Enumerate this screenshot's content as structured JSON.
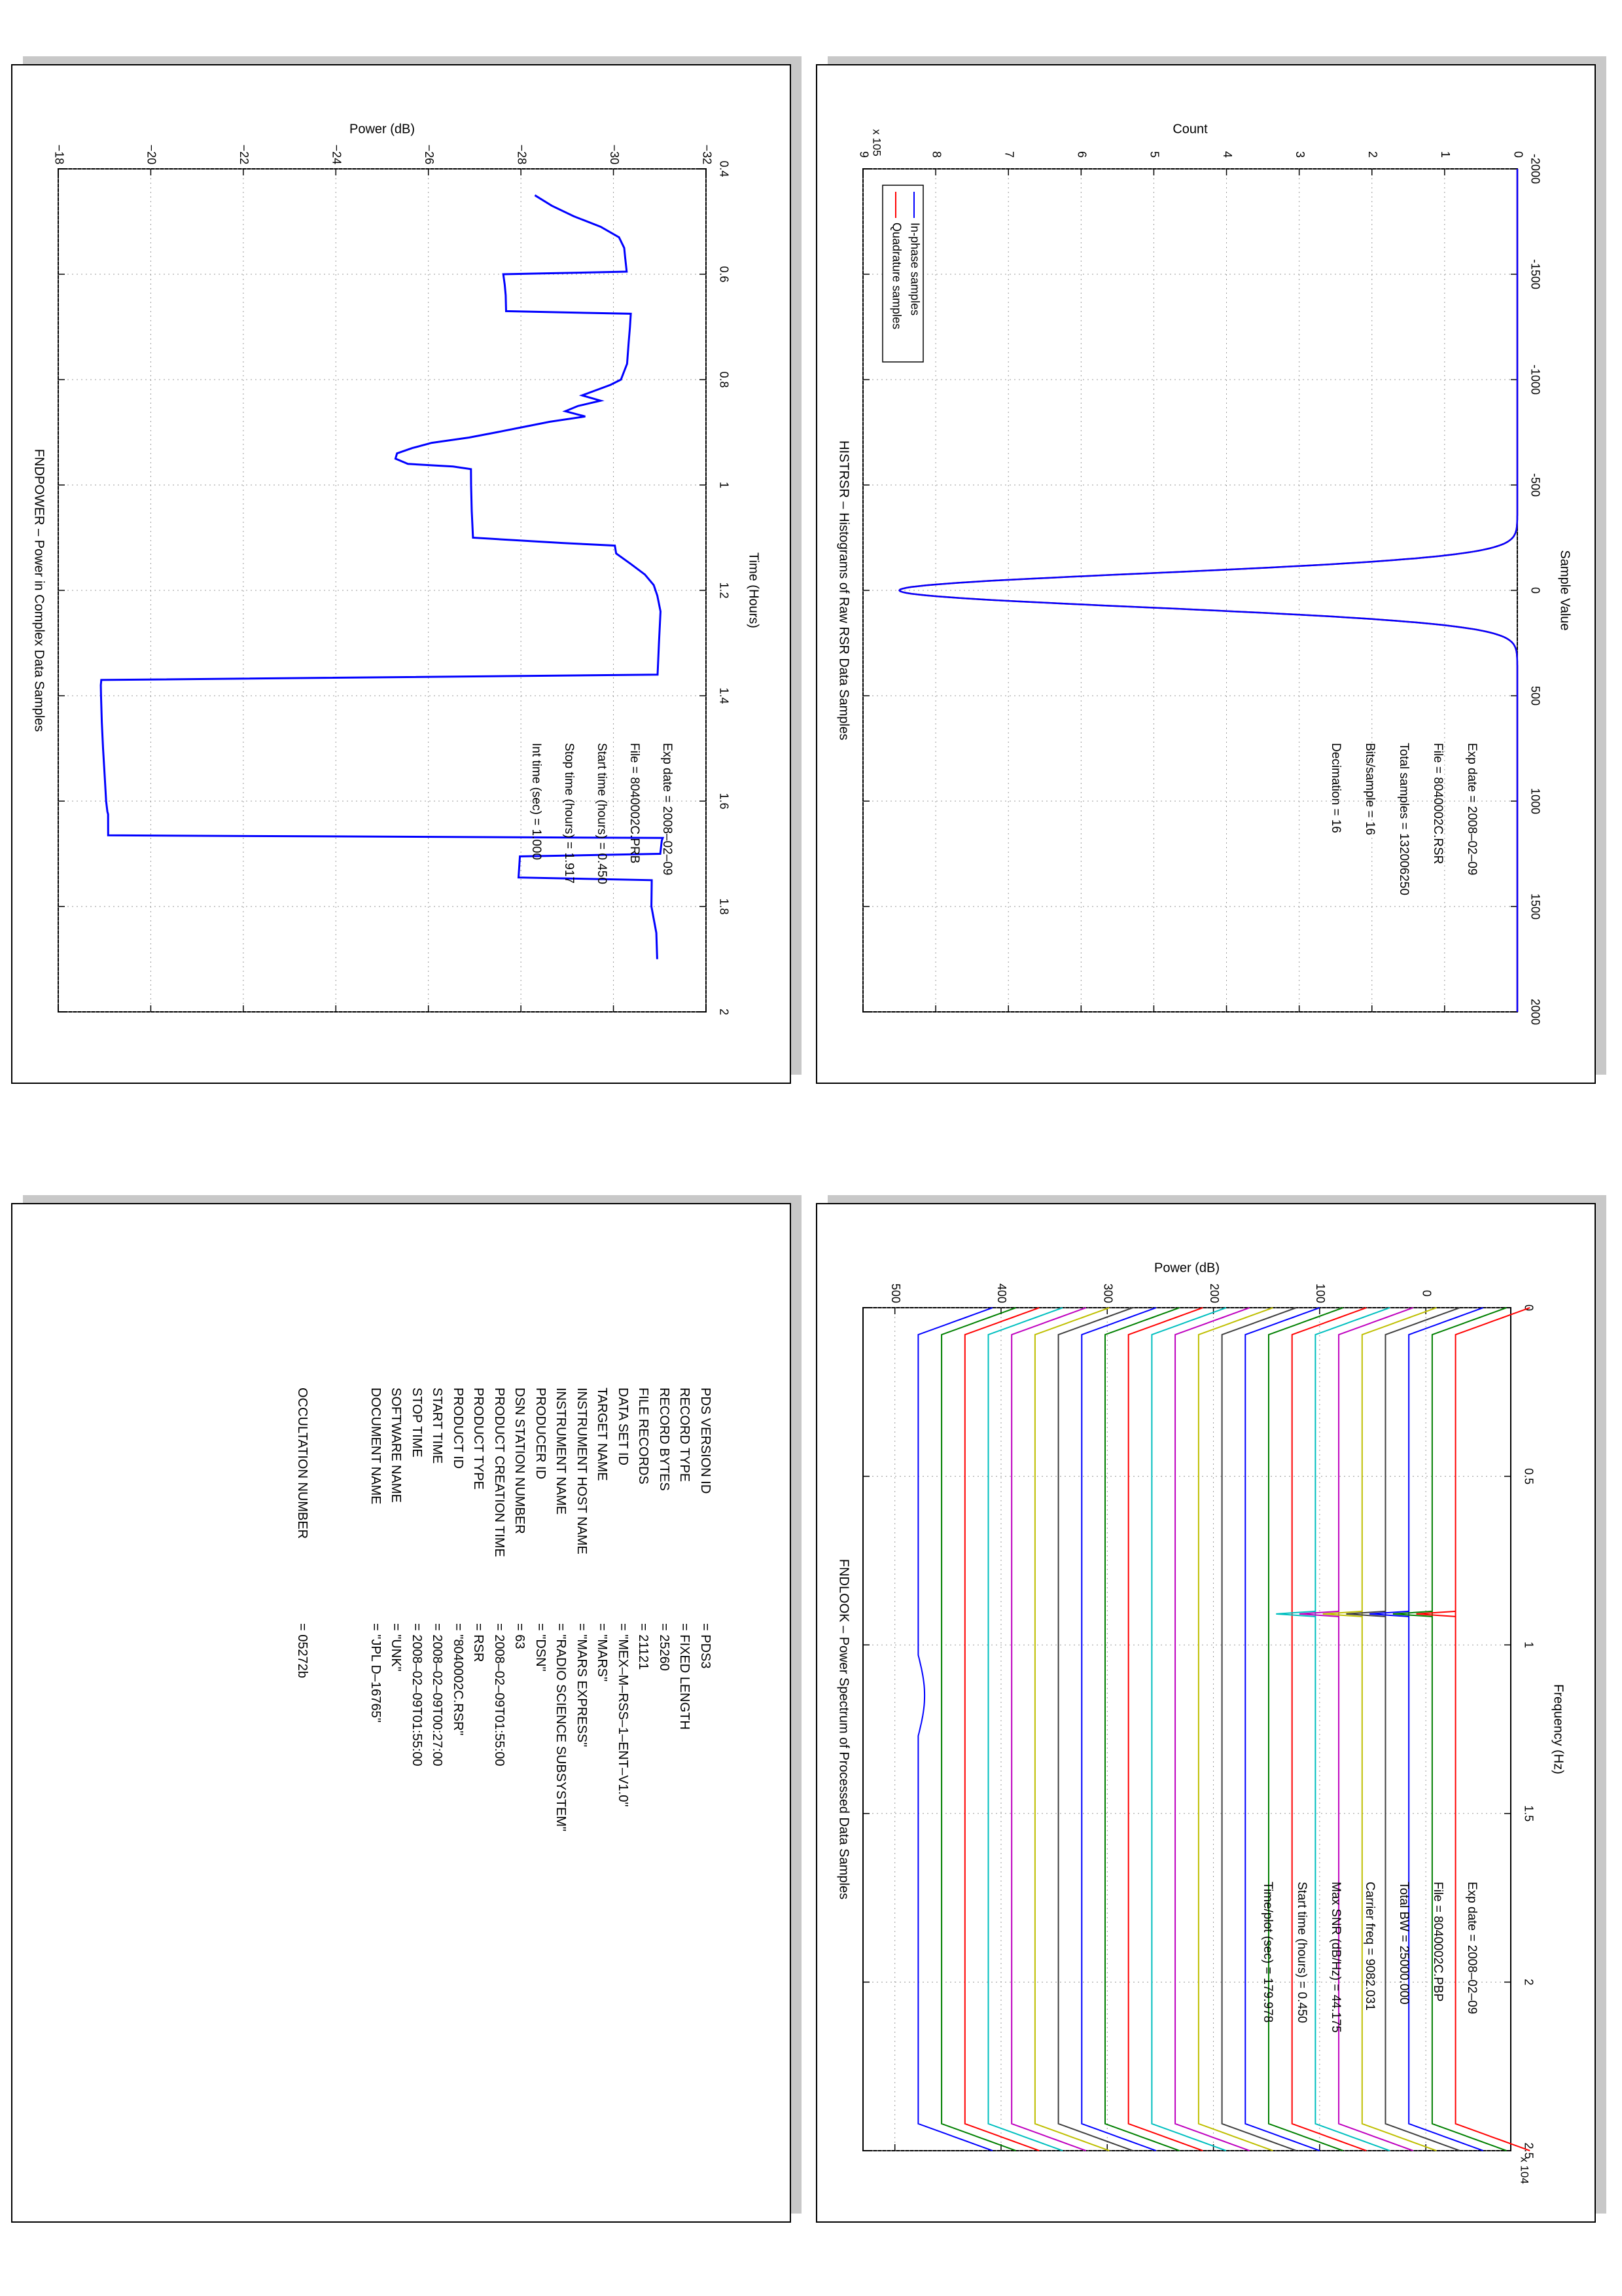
{
  "chart_data": [
    {
      "id": "histrsr",
      "type": "line",
      "title": "HISTRSR – Histograms of Raw RSR Data Samples",
      "xlabel": "Sample Value",
      "ylabel": "Count",
      "y_multiplier": "x 10^5",
      "xlim": [
        -2000,
        2000
      ],
      "ylim": [
        0,
        900000
      ],
      "xticks": [
        -2000,
        -1500,
        -1000,
        -500,
        0,
        500,
        1000,
        1500,
        2000
      ],
      "yticks": [
        0,
        100000,
        200000,
        300000,
        400000,
        500000,
        600000,
        700000,
        800000,
        900000
      ],
      "ytick_labels": [
        "0",
        "1",
        "2",
        "3",
        "4",
        "5",
        "6",
        "7",
        "8",
        "9"
      ],
      "grid": true,
      "legend": "top-right",
      "series": [
        {
          "name": "In-phase samples",
          "color": "#0000ff",
          "shape": "gaussian",
          "peak": 850000,
          "center": 0,
          "sigma": 80
        },
        {
          "name": "Quadrature samples",
          "color": "#ff0000",
          "shape": "gaussian",
          "peak": 850000,
          "center": 0,
          "sigma": 80
        }
      ],
      "annotations": [
        "Exp date = 2008–02–09",
        "File = 8040002C.RSR",
        "Total samples =  132006250",
        "Bits/sample   =        16",
        "Decimation    =        16"
      ]
    },
    {
      "id": "fndpower",
      "type": "line",
      "title": "FNDPOWER – Power in Complex Data Samples",
      "xlabel": "Time (Hours)",
      "ylabel": "Power (dB)",
      "xlim": [
        0.4,
        2.0
      ],
      "ylim": [
        -32,
        -18
      ],
      "xticks": [
        0.4,
        0.6,
        0.8,
        1.0,
        1.2,
        1.4,
        1.6,
        1.8,
        2.0
      ],
      "xtick_labels": [
        "0.4",
        "0.6",
        "0.8",
        "1",
        "1.2",
        "1.4",
        "1.6",
        "1.8",
        "2"
      ],
      "yticks": [
        -32,
        -30,
        -28,
        -26,
        -24,
        -22,
        -20,
        -18
      ],
      "ytick_labels": [
        "−32",
        "−30",
        "−28",
        "−26",
        "−24",
        "−22",
        "−20",
        "−18"
      ],
      "grid": true,
      "color": "#0000ff",
      "x": [
        0.45,
        0.47,
        0.49,
        0.51,
        0.53,
        0.55,
        0.57,
        0.595,
        0.6,
        0.62,
        0.64,
        0.67,
        0.675,
        0.7,
        0.73,
        0.77,
        0.8,
        0.81,
        0.83,
        0.84,
        0.85,
        0.86,
        0.87,
        0.88,
        0.89,
        0.9,
        0.91,
        0.92,
        0.93,
        0.94,
        0.95,
        0.96,
        0.965,
        0.97,
        1.0,
        1.05,
        1.1,
        1.11,
        1.115,
        1.13,
        1.15,
        1.17,
        1.19,
        1.21,
        1.24,
        1.3,
        1.36,
        1.37,
        1.38,
        1.4,
        1.45,
        1.5,
        1.55,
        1.6,
        1.62,
        1.625,
        1.665,
        1.67,
        1.675,
        1.7,
        1.705,
        1.745,
        1.75,
        1.8,
        1.85,
        1.9
      ],
      "y": [
        -28.3,
        -28.7,
        -29.2,
        -29.8,
        -30.2,
        -30.3,
        -30.3,
        -30.3,
        -27.6,
        -27.6,
        -27.6,
        -27.6,
        -30.3,
        -30.3,
        -30.3,
        -30.3,
        -30.2,
        -30.0,
        -29.4,
        -29.8,
        -29.3,
        -29.0,
        -29.4,
        -28.6,
        -28.0,
        -27.4,
        -26.8,
        -26.0,
        -25.6,
        -25.3,
        -25.3,
        -25.6,
        -26.6,
        -27.0,
        -27.0,
        -27.0,
        -27.0,
        -28.9,
        -30.0,
        -30.0,
        -30.3,
        -30.6,
        -30.8,
        -30.9,
        -31.0,
        -31.0,
        -31.0,
        -19.0,
        -19.0,
        -19.0,
        -19.0,
        -19.0,
        -19.0,
        -19.0,
        -19.0,
        -19.0,
        -19.0,
        -31.0,
        -31.0,
        -31.0,
        -28.0,
        -28.0,
        -30.9,
        -30.9,
        -31.0,
        -31.0
      ],
      "annotations": [
        "Exp date = 2008–02–09",
        "File = 8040002C.PRB",
        "Start time (hours) =  0.450",
        "Stop time (hours) =  1.917",
        "Int time (sec) =      1.000"
      ]
    },
    {
      "id": "fndlook",
      "type": "line",
      "title": "FNDLOOK – Power Spectrum of Processed Data Samples",
      "xlabel": "Frequency (Hz)",
      "ylabel": "Power (dB)",
      "x_multiplier": "x 10^4",
      "xlim": [
        0,
        25000
      ],
      "ylim": [
        -80,
        530
      ],
      "xticks": [
        0,
        5000,
        10000,
        15000,
        20000,
        25000
      ],
      "xtick_labels": [
        "0",
        "0.5",
        "1",
        "1.5",
        "2",
        "2.5"
      ],
      "yticks": [
        0,
        100,
        200,
        300,
        400,
        500
      ],
      "grid": true,
      "tone_frequency": 9082,
      "series_count": 24,
      "top_offset": 478,
      "offset_step": 22,
      "colors": [
        "#0000ff",
        "#008000",
        "#ff0000",
        "#00bfbf",
        "#bf00bf",
        "#bfbf00",
        "#3f3f3f"
      ],
      "annotations": [
        "Exp date = 2008–02–09",
        "File = 8040002C.PBP",
        "Total BW =      25000.000",
        "Carrier freq =   9082.031",
        "Max SNR (dB/Hz) =    44.175",
        "Start time (hours) =    0.450",
        "Time/plot (sec) =    179.978"
      ]
    }
  ],
  "label_table": {
    "rows": [
      {
        "key": "PDS VERSION ID",
        "value": "=  PDS3"
      },
      {
        "key": "RECORD TYPE",
        "value": "=  FIXED LENGTH"
      },
      {
        "key": "RECORD BYTES",
        "value": "=  25260"
      },
      {
        "key": "FILE RECORDS",
        "value": "=  21121"
      },
      {
        "key": "DATA SET ID",
        "value": "=  \"MEX–M–RSS–1–ENT–V1.0\""
      },
      {
        "key": "TARGET NAME",
        "value": "=  \"MARS\""
      },
      {
        "key": "INSTRUMENT HOST NAME",
        "value": "=  \"MARS EXPRESS\""
      },
      {
        "key": "INSTRUMENT NAME",
        "value": "=  \"RADIO SCIENCE SUBSYSTEM\""
      },
      {
        "key": "PRODUCER ID",
        "value": "=  \"DSN\""
      },
      {
        "key": "DSN STATION NUMBER",
        "value": "=  63"
      },
      {
        "key": "PRODUCT CREATION TIME",
        "value": "=  2008–02–09T01:55:00"
      },
      {
        "key": "PRODUCT TYPE",
        "value": "=  RSR"
      },
      {
        "key": "PRODUCT ID",
        "value": "=  \"8040002C.RSR\""
      },
      {
        "key": "START TIME",
        "value": "=  2008–02–09T00:27:00"
      },
      {
        "key": "STOP TIME",
        "value": "=  2008–02–09T01:55:00"
      },
      {
        "key": "SOFTWARE NAME",
        "value": "=  \"UNK\""
      },
      {
        "key": "DOCUMENT NAME",
        "value": "=  \"JPL D–16765\""
      }
    ],
    "occultation": {
      "key": "OCCULTATION NUMBER",
      "value": "=  05272b"
    }
  }
}
